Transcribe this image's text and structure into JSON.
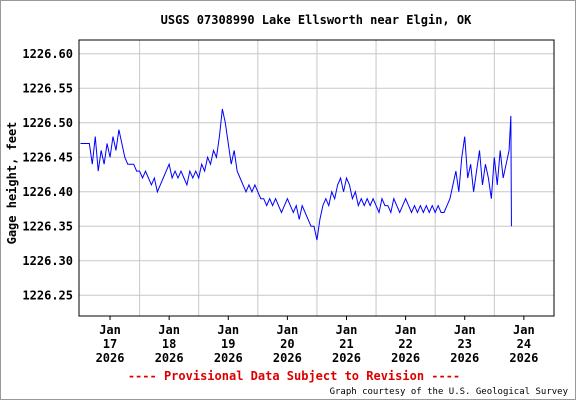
{
  "chart_data": {
    "type": "line",
    "title": "USGS 07308990 Lake Ellsworth near Elgin, OK",
    "ylabel": "Gage height, feet",
    "footer": "---- Provisional Data Subject to Revision ----",
    "credit": "Graph courtesy of the U.S. Geological Survey",
    "xlim": [
      16.975,
      25.01
    ],
    "xticks": [
      {
        "value": 17.5,
        "label": "Jan 17 2026"
      },
      {
        "value": 18.5,
        "label": "Jan 18 2026"
      },
      {
        "value": 19.5,
        "label": "Jan 19 2026"
      },
      {
        "value": 20.5,
        "label": "Jan 20 2026"
      },
      {
        "value": 21.5,
        "label": "Jan 21 2026"
      },
      {
        "value": 22.5,
        "label": "Jan 22 2026"
      },
      {
        "value": 23.5,
        "label": "Jan 23 2026"
      },
      {
        "value": 24.5,
        "label": "Jan 24 2026"
      }
    ],
    "xgrid": [
      18,
      19,
      20,
      21,
      22,
      23,
      24
    ],
    "ylim": [
      1226.22,
      1226.62
    ],
    "yticks": [
      1226.25,
      {
        "value": 1226.3,
        "label": "1226.30"
      },
      1226.35,
      {
        "value": 1226.4,
        "label": "1226.40"
      },
      1226.45,
      {
        "value": 1226.5,
        "label": "1226.50"
      },
      1226.55,
      {
        "value": 1226.6,
        "label": "1226.60"
      }
    ],
    "grid": true,
    "x": [
      17.0,
      17.05,
      17.1,
      17.15,
      17.2,
      17.25,
      17.3,
      17.35,
      17.4,
      17.45,
      17.5,
      17.55,
      17.6,
      17.65,
      17.7,
      17.75,
      17.8,
      17.85,
      17.9,
      17.95,
      18.0,
      18.05,
      18.1,
      18.15,
      18.2,
      18.25,
      18.3,
      18.35,
      18.4,
      18.45,
      18.5,
      18.55,
      18.6,
      18.65,
      18.7,
      18.75,
      18.8,
      18.85,
      18.9,
      18.95,
      19.0,
      19.05,
      19.1,
      19.15,
      19.2,
      19.25,
      19.3,
      19.35,
      19.4,
      19.45,
      19.5,
      19.55,
      19.6,
      19.65,
      19.7,
      19.75,
      19.8,
      19.85,
      19.9,
      19.95,
      20.0,
      20.05,
      20.1,
      20.15,
      20.2,
      20.25,
      20.3,
      20.35,
      20.4,
      20.45,
      20.5,
      20.55,
      20.6,
      20.65,
      20.7,
      20.75,
      20.8,
      20.85,
      20.9,
      20.95,
      21.0,
      21.05,
      21.1,
      21.15,
      21.2,
      21.25,
      21.3,
      21.35,
      21.4,
      21.45,
      21.5,
      21.55,
      21.6,
      21.65,
      21.7,
      21.75,
      21.8,
      21.85,
      21.9,
      21.95,
      22.0,
      22.05,
      22.1,
      22.15,
      22.2,
      22.25,
      22.3,
      22.35,
      22.4,
      22.45,
      22.5,
      22.55,
      22.6,
      22.65,
      22.7,
      22.75,
      22.8,
      22.85,
      22.9,
      22.95,
      23.0,
      23.05,
      23.1,
      23.15,
      23.2,
      23.25,
      23.3,
      23.35,
      23.4,
      23.45,
      23.5,
      23.55,
      23.6,
      23.65,
      23.7,
      23.75,
      23.8,
      23.85,
      23.9,
      23.95,
      24.0,
      24.05,
      24.1,
      24.15,
      24.2,
      24.25,
      24.28,
      24.29
    ],
    "series": [
      {
        "color": "#0000ff",
        "values": [
          1226.47,
          1226.47,
          1226.47,
          1226.47,
          1226.44,
          1226.48,
          1226.43,
          1226.46,
          1226.44,
          1226.47,
          1226.45,
          1226.48,
          1226.46,
          1226.49,
          1226.47,
          1226.45,
          1226.44,
          1226.44,
          1226.44,
          1226.43,
          1226.43,
          1226.42,
          1226.43,
          1226.42,
          1226.41,
          1226.42,
          1226.4,
          1226.41,
          1226.42,
          1226.43,
          1226.44,
          1226.42,
          1226.43,
          1226.42,
          1226.43,
          1226.42,
          1226.41,
          1226.43,
          1226.42,
          1226.43,
          1226.42,
          1226.44,
          1226.43,
          1226.45,
          1226.44,
          1226.46,
          1226.45,
          1226.48,
          1226.52,
          1226.5,
          1226.47,
          1226.44,
          1226.46,
          1226.43,
          1226.42,
          1226.41,
          1226.4,
          1226.41,
          1226.4,
          1226.41,
          1226.4,
          1226.39,
          1226.39,
          1226.38,
          1226.39,
          1226.38,
          1226.39,
          1226.38,
          1226.37,
          1226.38,
          1226.39,
          1226.38,
          1226.37,
          1226.38,
          1226.36,
          1226.38,
          1226.37,
          1226.36,
          1226.35,
          1226.35,
          1226.33,
          1226.36,
          1226.38,
          1226.39,
          1226.38,
          1226.4,
          1226.39,
          1226.41,
          1226.42,
          1226.4,
          1226.42,
          1226.41,
          1226.39,
          1226.4,
          1226.38,
          1226.39,
          1226.38,
          1226.39,
          1226.38,
          1226.39,
          1226.38,
          1226.37,
          1226.39,
          1226.38,
          1226.38,
          1226.37,
          1226.39,
          1226.38,
          1226.37,
          1226.38,
          1226.39,
          1226.38,
          1226.37,
          1226.38,
          1226.37,
          1226.38,
          1226.37,
          1226.38,
          1226.37,
          1226.38,
          1226.37,
          1226.38,
          1226.37,
          1226.37,
          1226.38,
          1226.39,
          1226.41,
          1226.43,
          1226.4,
          1226.45,
          1226.48,
          1226.42,
          1226.44,
          1226.4,
          1226.43,
          1226.46,
          1226.41,
          1226.44,
          1226.42,
          1226.39,
          1226.45,
          1226.41,
          1226.46,
          1226.42,
          1226.44,
          1226.46,
          1226.51,
          1226.35
        ]
      }
    ]
  }
}
